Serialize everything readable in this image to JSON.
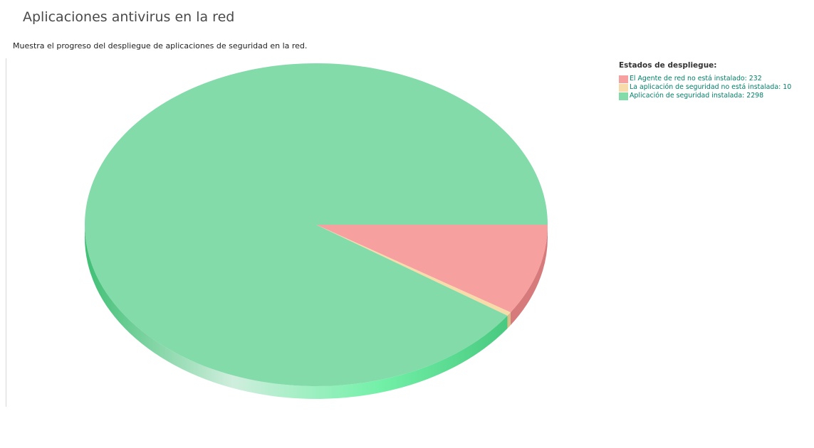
{
  "widget": {
    "title": "Aplicaciones antivirus en la red",
    "description": "Muestra el progreso del despliegue de aplicaciones de seguridad en la red."
  },
  "legend": {
    "title": "Estados de despliegue:",
    "placement": "top-right"
  },
  "chart_data": {
    "type": "pie",
    "style": "3d",
    "title": "",
    "categories": [
      "El Agente de red no está instalado: 232",
      "La aplicación de seguridad no está instalada: 10",
      "Aplicación de seguridad instalada: 2298"
    ],
    "values": [
      232,
      10,
      2298
    ],
    "colors": [
      "#f7a0a0",
      "#f7dcaa",
      "#83dba9"
    ],
    "side_colors": [
      "#d67a7c",
      "#d8bd88",
      "#5fcf8d"
    ]
  }
}
